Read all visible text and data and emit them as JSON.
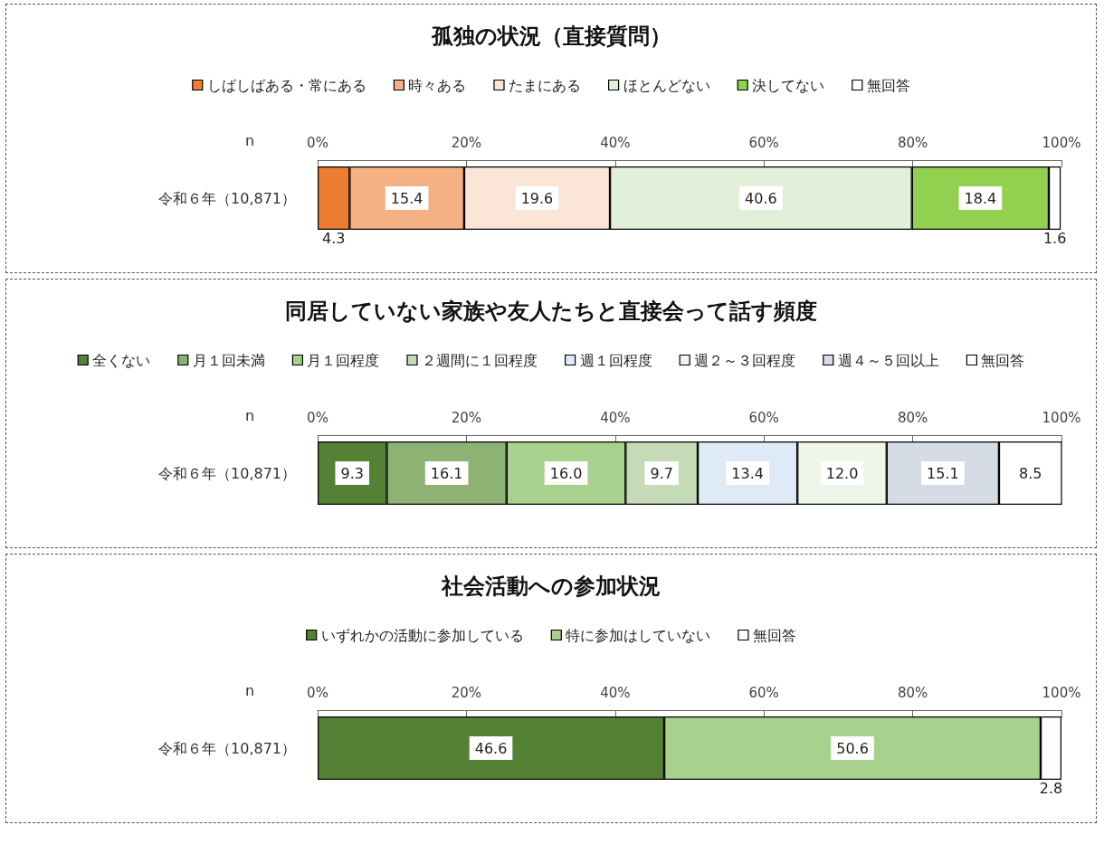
{
  "chart_data": [
    {
      "type": "bar",
      "title": "孤独の状況（直接質問）",
      "orientation": "horizontal",
      "stacked": true,
      "categories": [
        "令和６年（10,871）"
      ],
      "ylabel": "n",
      "xlim": [
        0,
        100
      ],
      "xticks": [
        {
          "value": 0,
          "label": "0%"
        },
        {
          "value": 20,
          "label": "20%"
        },
        {
          "value": 40,
          "label": "40%"
        },
        {
          "value": 60,
          "label": "60%"
        },
        {
          "value": 80,
          "label": "80%"
        },
        {
          "value": 100,
          "label": "100%"
        }
      ],
      "legend": "top",
      "grid": false,
      "series": [
        {
          "name": "しばしばある・常にある",
          "color": "#ed7d31",
          "values": [
            4.3
          ],
          "value_labels": [
            "4.3"
          ]
        },
        {
          "name": "時々ある",
          "color": "#f4b183",
          "values": [
            15.4
          ],
          "value_labels": [
            "15.4"
          ]
        },
        {
          "name": "たまにある",
          "color": "#fbe5d6",
          "values": [
            19.6
          ],
          "value_labels": [
            "19.6"
          ]
        },
        {
          "name": "ほとんどない",
          "color": "#e2f0d9",
          "values": [
            40.6
          ],
          "value_labels": [
            "40.6"
          ]
        },
        {
          "name": "決してない",
          "color": "#92d050",
          "values": [
            18.4
          ],
          "value_labels": [
            "18.4"
          ]
        },
        {
          "name": "無回答",
          "color": "#ffffff",
          "values": [
            1.6
          ],
          "value_labels": [
            "1.6"
          ]
        }
      ]
    },
    {
      "type": "bar",
      "title": "同居していない家族や友人たちと直接会って話す頻度",
      "orientation": "horizontal",
      "stacked": true,
      "categories": [
        "令和６年（10,871）"
      ],
      "ylabel": "n",
      "xlim": [
        0,
        100
      ],
      "xticks": [
        {
          "value": 0,
          "label": "0%"
        },
        {
          "value": 20,
          "label": "20%"
        },
        {
          "value": 40,
          "label": "40%"
        },
        {
          "value": 60,
          "label": "60%"
        },
        {
          "value": 80,
          "label": "80%"
        },
        {
          "value": 100,
          "label": "100%"
        }
      ],
      "legend": "top",
      "grid": false,
      "series": [
        {
          "name": "全くない",
          "color": "#548235",
          "values": [
            9.3
          ],
          "value_labels": [
            "9.3"
          ]
        },
        {
          "name": "月１回未満",
          "color": "#8db274",
          "values": [
            16.1
          ],
          "value_labels": [
            "16.1"
          ]
        },
        {
          "name": "月１回程度",
          "color": "#a9d18e",
          "values": [
            16.0
          ],
          "value_labels": [
            "16.0"
          ]
        },
        {
          "name": "２週間に１回程度",
          "color": "#c5dab6",
          "values": [
            9.7
          ],
          "value_labels": [
            "9.7"
          ]
        },
        {
          "name": "週１回程度",
          "color": "#deebf7",
          "values": [
            13.4
          ],
          "value_labels": [
            "13.4"
          ]
        },
        {
          "name": "週２～３回程度",
          "color": "#eef5e9",
          "values": [
            12.0
          ],
          "value_labels": [
            "12.0"
          ]
        },
        {
          "name": "週４～５回以上",
          "color": "#d6dce5",
          "values": [
            15.1
          ],
          "value_labels": [
            "15.1"
          ]
        },
        {
          "name": "無回答",
          "color": "#ffffff",
          "values": [
            8.5
          ],
          "value_labels": [
            "8.5"
          ]
        }
      ]
    },
    {
      "type": "bar",
      "title": "社会活動への参加状況",
      "orientation": "horizontal",
      "stacked": true,
      "categories": [
        "令和６年（10,871）"
      ],
      "ylabel": "n",
      "xlim": [
        0,
        100
      ],
      "xticks": [
        {
          "value": 0,
          "label": "0%"
        },
        {
          "value": 20,
          "label": "20%"
        },
        {
          "value": 40,
          "label": "40%"
        },
        {
          "value": 60,
          "label": "60%"
        },
        {
          "value": 80,
          "label": "80%"
        },
        {
          "value": 100,
          "label": "100%"
        }
      ],
      "legend": "top",
      "grid": false,
      "series": [
        {
          "name": "いずれかの活動に参加している",
          "color": "#548235",
          "values": [
            46.6
          ],
          "value_labels": [
            "46.6"
          ]
        },
        {
          "name": "特に参加はしていない",
          "color": "#a9d18e",
          "values": [
            50.6
          ],
          "value_labels": [
            "50.6"
          ]
        },
        {
          "name": "無回答",
          "color": "#ffffff",
          "values": [
            2.8
          ],
          "value_labels": [
            "2.8"
          ]
        }
      ]
    }
  ]
}
